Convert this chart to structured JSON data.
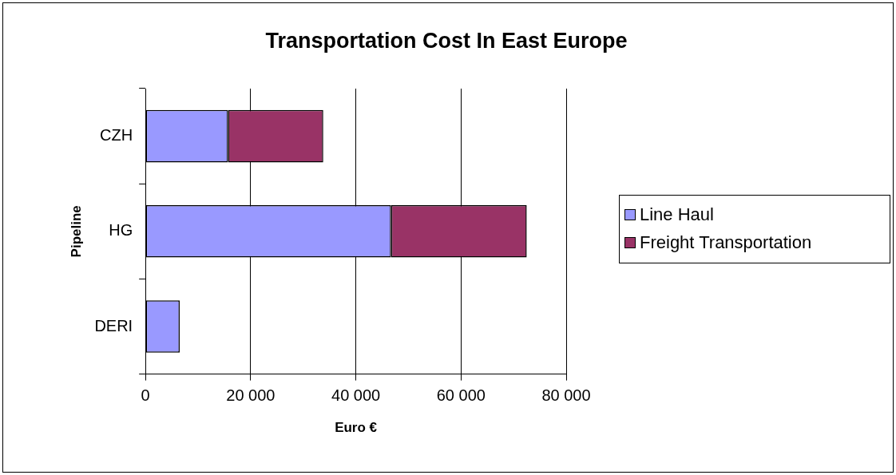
{
  "chart_data": {
    "type": "bar",
    "orientation": "horizontal",
    "stacked": true,
    "title": "Transportation Cost In East Europe",
    "xlabel": "Euro €",
    "ylabel": "Pipeline",
    "categories": [
      "CZH",
      "HG",
      "DERI"
    ],
    "series": [
      {
        "name": "Line Haul",
        "color": "#9999ff",
        "values": [
          15700,
          46700,
          6500
        ]
      },
      {
        "name": "Freight Transportation",
        "color": "#993366",
        "values": [
          18100,
          25800,
          null
        ]
      }
    ],
    "xlim": [
      0,
      80000
    ],
    "xticks": [
      0,
      {
        "value": 20000,
        "label": "20 000"
      },
      {
        "value": 40000,
        "label": "40 000"
      },
      {
        "value": 60000,
        "label": "60 000"
      },
      {
        "value": 80000,
        "label": "80 000"
      }
    ],
    "grid": "x",
    "legend": "right"
  }
}
